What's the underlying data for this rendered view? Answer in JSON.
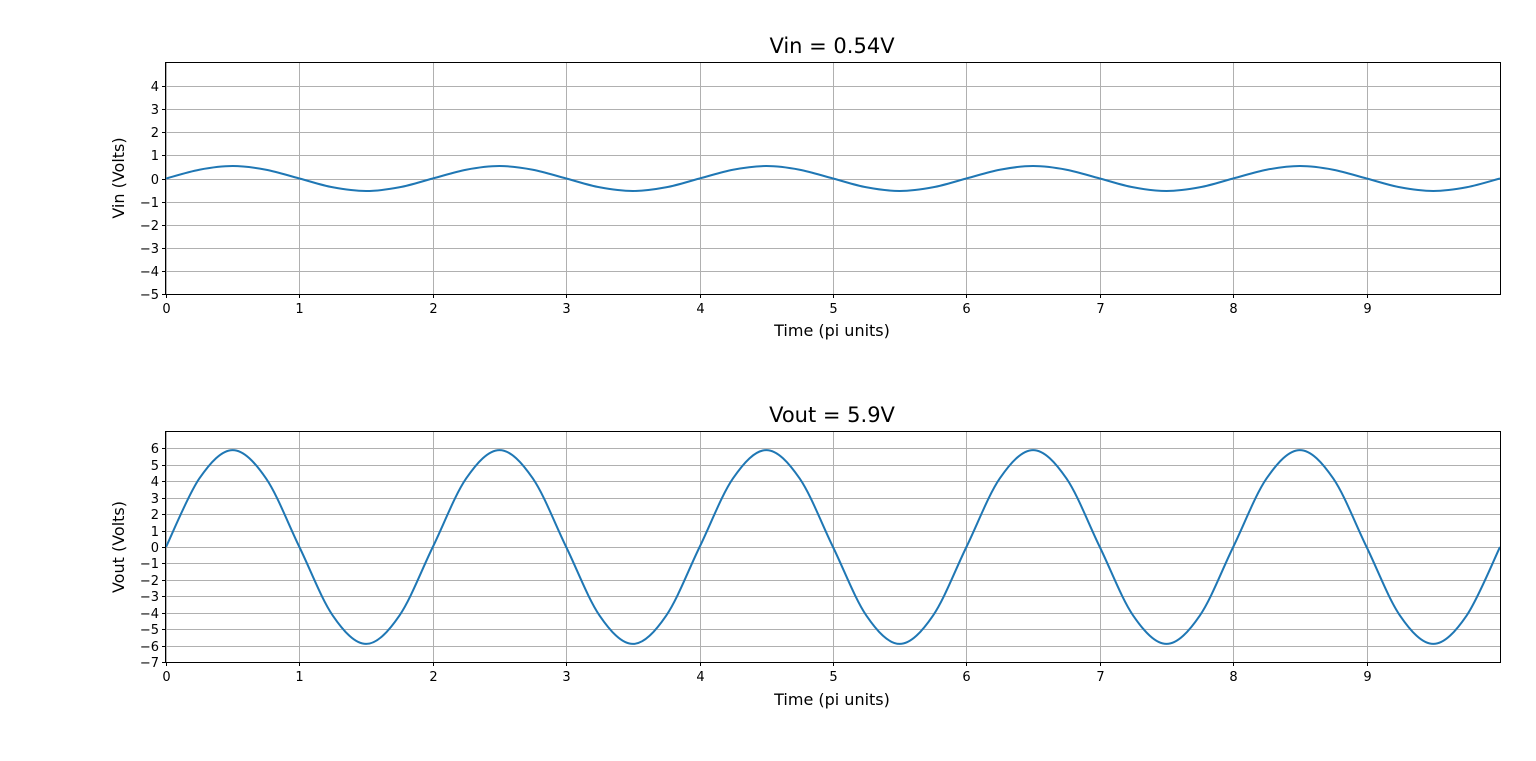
{
  "chart_data": [
    {
      "type": "line",
      "title": "Vin = 0.54V",
      "xlabel": "Time (pi units)",
      "ylabel": "Vin (Volts)",
      "xlim": [
        0,
        10
      ],
      "ylim": [
        -5,
        5
      ],
      "xticks": [
        0,
        1,
        2,
        3,
        4,
        5,
        6,
        7,
        8,
        9
      ],
      "yticks": [
        -5,
        -4,
        -3,
        -2,
        -1,
        0,
        1,
        2,
        3,
        4
      ],
      "grid": true,
      "series": [
        {
          "color": "#1f77b4",
          "x": [
            0,
            0.25,
            0.5,
            0.75,
            1,
            1.25,
            1.5,
            1.75,
            2,
            2.25,
            2.5,
            2.75,
            3,
            3.25,
            3.5,
            3.75,
            4,
            4.25,
            4.5,
            4.75,
            5,
            5.25,
            5.5,
            5.75,
            6,
            6.25,
            6.5,
            6.75,
            7,
            7.25,
            7.5,
            7.75,
            8,
            8.25,
            8.5,
            8.75,
            9,
            9.25,
            9.5,
            9.75,
            10
          ],
          "y": [
            0,
            0.38,
            0.54,
            0.38,
            0,
            -0.38,
            -0.54,
            -0.38,
            0,
            0.38,
            0.54,
            0.38,
            0,
            -0.38,
            -0.54,
            -0.38,
            0,
            0.38,
            0.54,
            0.38,
            0,
            -0.38,
            -0.54,
            -0.38,
            0,
            0.38,
            0.54,
            0.38,
            0,
            -0.38,
            -0.54,
            -0.38,
            0,
            0.38,
            0.54,
            0.38,
            0,
            -0.38,
            -0.54,
            -0.38,
            0
          ]
        }
      ]
    },
    {
      "type": "line",
      "title": "Vout = 5.9V",
      "xlabel": "Time (pi units)",
      "ylabel": "Vout (Volts)",
      "xlim": [
        0,
        10
      ],
      "ylim": [
        -7,
        7
      ],
      "xticks": [
        0,
        1,
        2,
        3,
        4,
        5,
        6,
        7,
        8,
        9
      ],
      "yticks": [
        -7,
        -6,
        -5,
        -4,
        -3,
        -2,
        -1,
        0,
        1,
        2,
        3,
        4,
        5,
        6
      ],
      "grid": true,
      "series": [
        {
          "color": "#1f77b4",
          "x": [
            0,
            0.25,
            0.5,
            0.75,
            1,
            1.25,
            1.5,
            1.75,
            2,
            2.25,
            2.5,
            2.75,
            3,
            3.25,
            3.5,
            3.75,
            4,
            4.25,
            4.5,
            4.75,
            5,
            5.25,
            5.5,
            5.75,
            6,
            6.25,
            6.5,
            6.75,
            7,
            7.25,
            7.5,
            7.75,
            8,
            8.25,
            8.5,
            8.75,
            9,
            9.25,
            9.5,
            9.75,
            10
          ],
          "y": [
            0,
            4.17,
            5.9,
            4.17,
            0,
            -4.17,
            -5.9,
            -4.17,
            0,
            4.17,
            5.9,
            4.17,
            0,
            -4.17,
            -5.9,
            -4.17,
            0,
            4.17,
            5.9,
            4.17,
            0,
            -4.17,
            -5.9,
            -4.17,
            0,
            4.17,
            5.9,
            4.17,
            0,
            -4.17,
            -5.9,
            -4.17,
            0,
            4.17,
            5.9,
            4.17,
            0,
            -4.17,
            -5.9,
            -4.17,
            0
          ]
        }
      ]
    }
  ]
}
